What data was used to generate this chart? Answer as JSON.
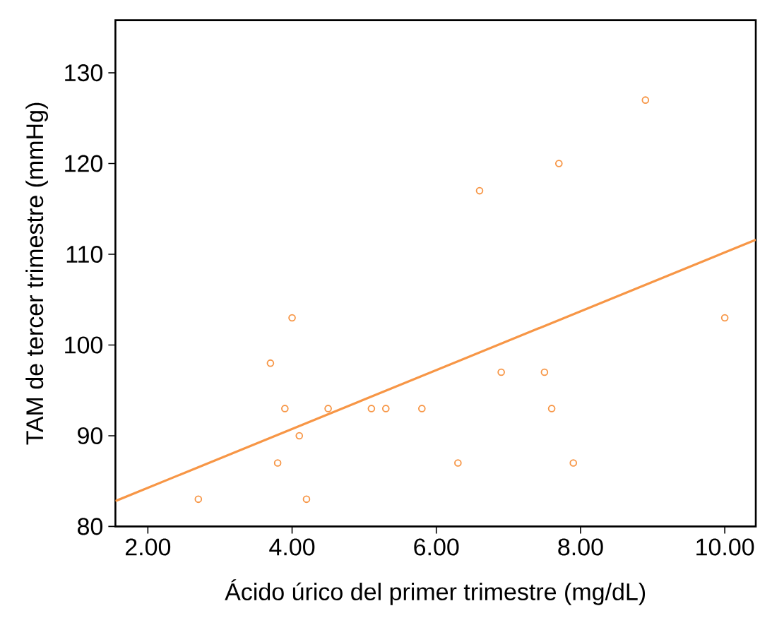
{
  "chart_data": {
    "type": "scatter",
    "xlabel": "Ácido úrico del primer trimestre (mg/dL)",
    "ylabel": "TAM de tercer trimestre (mmHg)",
    "x": [
      2.7,
      3.7,
      4.0,
      3.9,
      3.8,
      4.1,
      4.2,
      4.5,
      5.1,
      5.3,
      5.8,
      6.3,
      6.6,
      6.9,
      7.5,
      7.6,
      7.7,
      7.9,
      8.9,
      10.0
    ],
    "series": [
      {
        "color": "#f79646",
        "marker": "circle",
        "values": [
          83,
          98,
          103,
          93,
          87,
          90,
          83,
          93,
          93,
          93,
          93,
          87,
          117,
          97,
          97,
          93,
          120,
          87,
          127,
          103
        ]
      },
      {
        "type": "line",
        "color": "#f79646",
        "marker": "none",
        "line_style": "solid",
        "x": [
          1.55,
          10.43
        ],
        "values": [
          82.8,
          111.6
        ]
      }
    ],
    "xlim": [
      1.55,
      10.43
    ],
    "ylim": [
      80,
      135.8
    ],
    "xticks": [
      {
        "value": 2,
        "label": "2.00"
      },
      {
        "value": 4,
        "label": "4.00"
      },
      {
        "value": 6,
        "label": "6.00"
      },
      {
        "value": 8,
        "label": "8.00"
      },
      {
        "value": 10,
        "label": "10.00"
      }
    ],
    "yticks": [
      80,
      90,
      100,
      110,
      120,
      130
    ],
    "grid": false
  }
}
